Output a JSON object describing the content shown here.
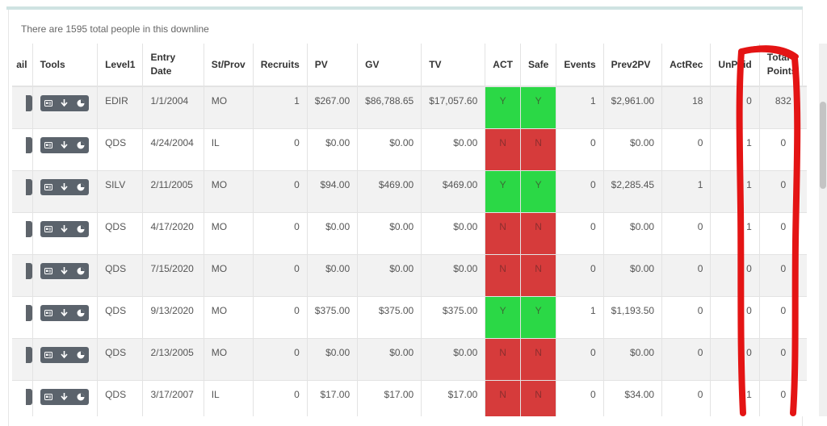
{
  "summary_text": "There are 1595 total people in this downline",
  "columns": [
    {
      "key": "email",
      "label": "ail"
    },
    {
      "key": "tools",
      "label": "Tools"
    },
    {
      "key": "level1",
      "label": "Level1"
    },
    {
      "key": "entry",
      "label": "Entry Date"
    },
    {
      "key": "st",
      "label": "St/Prov"
    },
    {
      "key": "recruits",
      "label": "Recruits"
    },
    {
      "key": "pv",
      "label": "PV"
    },
    {
      "key": "gv",
      "label": "GV"
    },
    {
      "key": "tv",
      "label": "TV"
    },
    {
      "key": "act",
      "label": "ACT"
    },
    {
      "key": "safe",
      "label": "Safe"
    },
    {
      "key": "events",
      "label": "Events"
    },
    {
      "key": "prev2pv",
      "label": "Prev2PV"
    },
    {
      "key": "actrec",
      "label": "ActRec"
    },
    {
      "key": "unpaid",
      "label": "UnPaid"
    },
    {
      "key": "points",
      "label": "Total Points"
    }
  ],
  "rows": [
    {
      "level1": "EDIR",
      "entry": "1/1/2004",
      "st": "MO",
      "recruits": "1",
      "pv": "$267.00",
      "gv": "$86,788.65",
      "tv": "$17,057.60",
      "act": "Y",
      "safe": "Y",
      "events": "1",
      "prev2pv": "$2,961.00",
      "actrec": "18",
      "unpaid": "0",
      "points": "832"
    },
    {
      "level1": "QDS",
      "entry": "4/24/2004",
      "st": "IL",
      "recruits": "0",
      "pv": "$0.00",
      "gv": "$0.00",
      "tv": "$0.00",
      "act": "N",
      "safe": "N",
      "events": "0",
      "prev2pv": "$0.00",
      "actrec": "0",
      "unpaid": "1",
      "points": "0"
    },
    {
      "level1": "SILV",
      "entry": "2/11/2005",
      "st": "MO",
      "recruits": "0",
      "pv": "$94.00",
      "gv": "$469.00",
      "tv": "$469.00",
      "act": "Y",
      "safe": "Y",
      "events": "0",
      "prev2pv": "$2,285.45",
      "actrec": "1",
      "unpaid": "1",
      "points": "0"
    },
    {
      "level1": "QDS",
      "entry": "4/17/2020",
      "st": "MO",
      "recruits": "0",
      "pv": "$0.00",
      "gv": "$0.00",
      "tv": "$0.00",
      "act": "N",
      "safe": "N",
      "events": "0",
      "prev2pv": "$0.00",
      "actrec": "0",
      "unpaid": "1",
      "points": "0"
    },
    {
      "level1": "QDS",
      "entry": "7/15/2020",
      "st": "MO",
      "recruits": "0",
      "pv": "$0.00",
      "gv": "$0.00",
      "tv": "$0.00",
      "act": "N",
      "safe": "N",
      "events": "0",
      "prev2pv": "$0.00",
      "actrec": "0",
      "unpaid": "0",
      "points": "0"
    },
    {
      "level1": "QDS",
      "entry": "9/13/2020",
      "st": "MO",
      "recruits": "0",
      "pv": "$375.00",
      "gv": "$375.00",
      "tv": "$375.00",
      "act": "Y",
      "safe": "Y",
      "events": "1",
      "prev2pv": "$1,193.50",
      "actrec": "0",
      "unpaid": "0",
      "points": "0"
    },
    {
      "level1": "QDS",
      "entry": "2/13/2005",
      "st": "MO",
      "recruits": "0",
      "pv": "$0.00",
      "gv": "$0.00",
      "tv": "$0.00",
      "act": "N",
      "safe": "N",
      "events": "0",
      "prev2pv": "$0.00",
      "actrec": "0",
      "unpaid": "0",
      "points": "0"
    },
    {
      "level1": "QDS",
      "entry": "3/17/2007",
      "st": "IL",
      "recruits": "0",
      "pv": "$17.00",
      "gv": "$17.00",
      "tv": "$17.00",
      "act": "N",
      "safe": "N",
      "events": "0",
      "prev2pv": "$34.00",
      "actrec": "0",
      "unpaid": "1",
      "points": "0"
    }
  ],
  "tools_icons": [
    "id-card-icon",
    "download-arrow-icon",
    "pie-chart-icon"
  ],
  "colors": {
    "active": "#2bd846",
    "inactive": "#d63b3b",
    "tools_bg": "#5b636c",
    "marker": "#e41414"
  }
}
